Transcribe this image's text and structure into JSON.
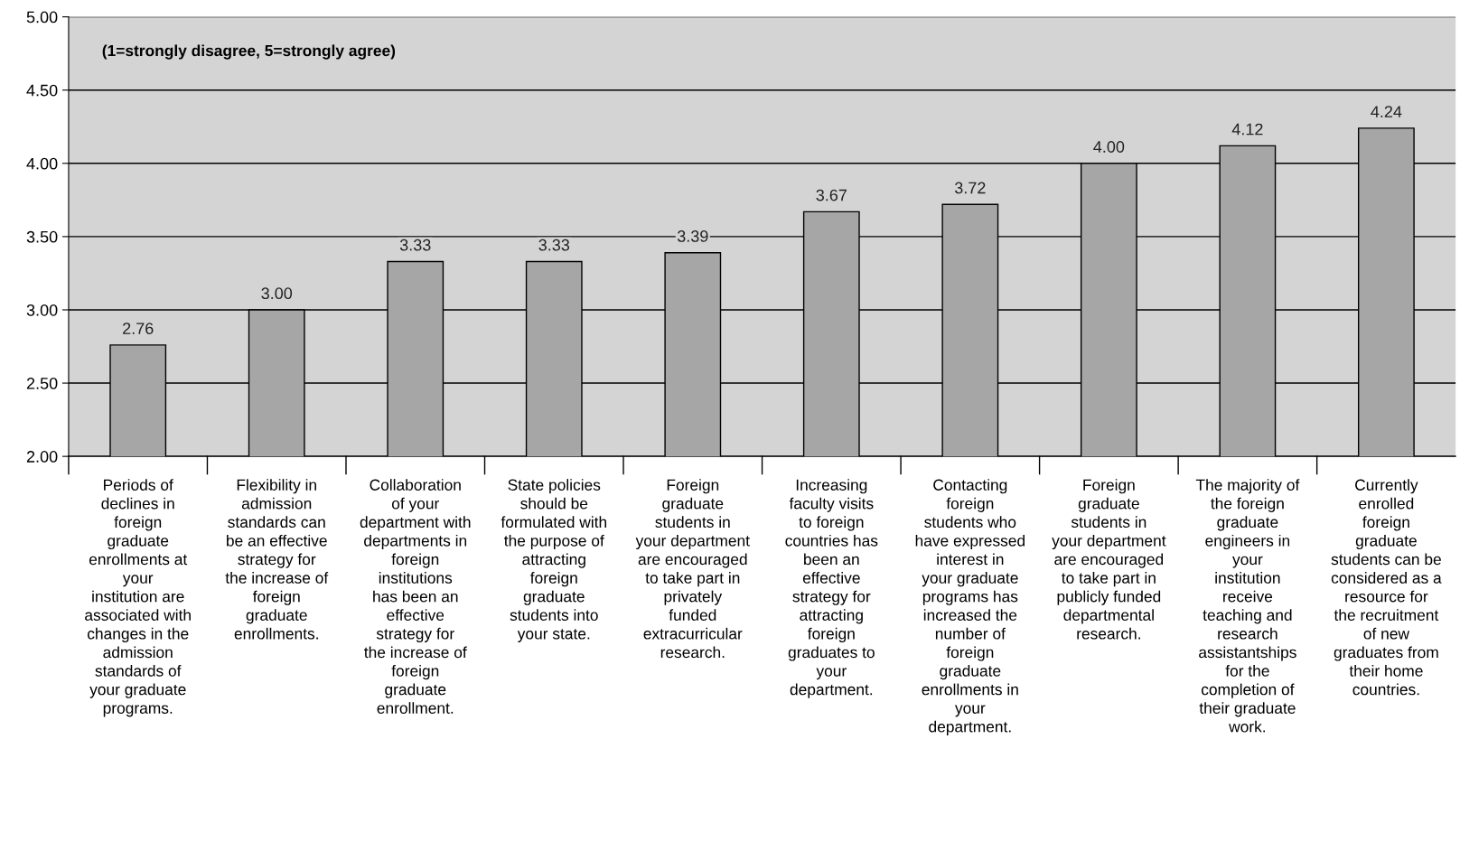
{
  "chart_data": {
    "type": "bar",
    "categories": [
      "Periods of declines in foreign graduate enrollments at your institution are associated with changes in the admission standards of your graduate programs.",
      "Flexibility in admission standards can be an effective strategy for the increase of foreign graduate enrollments.",
      "Collaboration of your department with departments in foreign institutions has been an effective strategy for the increase of foreign graduate enrollment.",
      "State policies should be formulated with the purpose of attracting foreign graduate students into your state.",
      "Foreign graduate students in your department are encouraged to take part in privately funded extracurricular research.",
      "Increasing faculty visits to foreign countries has been an effective strategy for attracting foreign graduates to your department.",
      "Contacting foreign students who have expressed interest in your graduate programs has increased the number of foreign graduate enrollments in your department.",
      "Foreign graduate students in your department are encouraged to take part in publicly funded departmental research.",
      "The majority of the foreign graduate engineers in your institution receive teaching and research assistantships for the completion of their graduate work.",
      "Currently enrolled foreign graduate students can be considered as a resource for the recruitment of new graduates from their home countries."
    ],
    "values": [
      2.76,
      3.0,
      3.33,
      3.33,
      3.39,
      3.67,
      3.72,
      4.0,
      4.12,
      4.24
    ],
    "value_labels": [
      "2.76",
      "3.00",
      "3.33",
      "3.33",
      "3.39",
      "3.67",
      "3.72",
      "4.00",
      "4.12",
      "4.24"
    ],
    "color": "#a6a6a6",
    "ylim": [
      2,
      5
    ],
    "yticks": [
      {
        "value": 2,
        "label": "2.00"
      },
      {
        "value": 2.5,
        "label": "2.50"
      },
      {
        "value": 3,
        "label": "3.00"
      },
      {
        "value": 3.5,
        "label": "3.50"
      },
      {
        "value": 4,
        "label": "4.00"
      },
      {
        "value": 4.5,
        "label": "4.50"
      },
      {
        "value": 5,
        "label": "5.00"
      }
    ],
    "grid": "y",
    "annotations": [
      "(1=strongly disagree, 5=strongly agree)"
    ]
  }
}
